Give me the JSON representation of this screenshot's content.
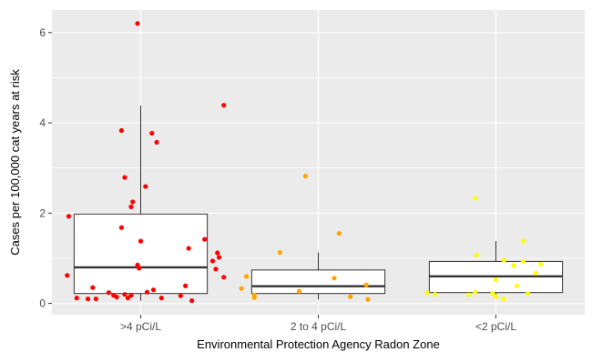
{
  "chart_data": {
    "type": "boxplot",
    "xlabel": "Environmental Protection Agency Radon Zone",
    "ylabel": "Cases per 100,000 cat years at risk",
    "ylim": [
      -0.25,
      6.5
    ],
    "yticks": [
      0,
      2,
      4,
      6
    ],
    "grid": true,
    "categories": [
      ">4 pCi/L",
      "2 to 4 pCi/L",
      "<2 pCi/L"
    ],
    "colors": [
      "#ff0000",
      "#ffa500",
      "#ffff00"
    ],
    "boxes": [
      {
        "q1": 0.22,
        "median": 0.8,
        "q3": 1.98,
        "whisker_low": 0.06,
        "whisker_high": 4.38
      },
      {
        "q1": 0.22,
        "median": 0.38,
        "q3": 0.74,
        "whisker_low": 0.09,
        "whisker_high": 1.13
      },
      {
        "q1": 0.24,
        "median": 0.6,
        "q3": 0.93,
        "whisker_low": 0.12,
        "whisker_high": 1.38
      }
    ],
    "points": [
      [
        [
          -0.02,
          6.2
        ],
        [
          0.52,
          4.39
        ],
        [
          -0.12,
          3.83
        ],
        [
          0.07,
          3.77
        ],
        [
          0.1,
          3.57
        ],
        [
          -0.1,
          2.79
        ],
        [
          0.03,
          2.59
        ],
        [
          -0.05,
          2.25
        ],
        [
          -0.06,
          2.14
        ],
        [
          -0.45,
          1.93
        ],
        [
          -0.12,
          1.68
        ],
        [
          0.4,
          1.42
        ],
        [
          0.0,
          1.38
        ],
        [
          0.3,
          1.22
        ],
        [
          0.48,
          1.12
        ],
        [
          0.49,
          1.02
        ],
        [
          0.45,
          0.94
        ],
        [
          -0.02,
          0.85
        ],
        [
          -0.01,
          0.78
        ],
        [
          0.47,
          0.76
        ],
        [
          -0.46,
          0.62
        ],
        [
          0.52,
          0.58
        ],
        [
          0.28,
          0.39
        ],
        [
          -0.3,
          0.35
        ],
        [
          0.08,
          0.3
        ],
        [
          0.04,
          0.25
        ],
        [
          -0.2,
          0.24
        ],
        [
          -0.17,
          0.18
        ],
        [
          -0.15,
          0.14
        ],
        [
          0.25,
          0.17
        ],
        [
          -0.06,
          0.18
        ],
        [
          -0.08,
          0.12
        ],
        [
          0.13,
          0.12
        ],
        [
          -0.28,
          0.1
        ],
        [
          -0.33,
          0.1
        ],
        [
          -0.4,
          0.12
        ],
        [
          0.32,
          0.06
        ],
        [
          -0.1,
          0.2
        ]
      ],
      [
        [
          -0.08,
          2.82
        ],
        [
          0.13,
          1.55
        ],
        [
          -0.24,
          1.13
        ],
        [
          -0.45,
          0.6
        ],
        [
          0.1,
          0.56
        ],
        [
          0.3,
          0.41
        ],
        [
          -0.48,
          0.33
        ],
        [
          -0.12,
          0.27
        ],
        [
          -0.4,
          0.19
        ],
        [
          -0.4,
          0.13
        ],
        [
          0.2,
          0.15
        ],
        [
          0.31,
          0.09
        ]
      ],
      [
        [
          -0.13,
          2.33
        ],
        [
          0.17,
          1.38
        ],
        [
          -0.12,
          1.07
        ],
        [
          0.05,
          0.96
        ],
        [
          0.17,
          0.93
        ],
        [
          0.28,
          0.87
        ],
        [
          0.11,
          0.84
        ],
        [
          0.25,
          0.67
        ],
        [
          0.0,
          0.53
        ],
        [
          0.13,
          0.39
        ],
        [
          -0.13,
          0.25
        ],
        [
          -0.43,
          0.24
        ],
        [
          -0.02,
          0.22
        ],
        [
          0.0,
          0.15
        ],
        [
          0.2,
          0.22
        ],
        [
          -0.17,
          0.19
        ],
        [
          0.05,
          0.1
        ],
        [
          -0.38,
          0.2
        ]
      ]
    ]
  }
}
